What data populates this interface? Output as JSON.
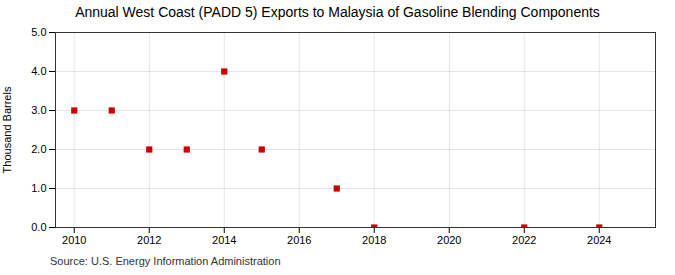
{
  "chart_data": {
    "type": "scatter",
    "title": "Annual West Coast (PADD 5) Exports to Malaysia of Gasoline Blending Components",
    "ylabel": "Thousand Barrels",
    "source": "Source: U.S. Energy Information Administration",
    "x": [
      2010,
      2011,
      2012,
      2013,
      2014,
      2015,
      2017,
      2018,
      2022,
      2024
    ],
    "values": [
      3.0,
      3.0,
      2.0,
      2.0,
      4.0,
      2.0,
      1.0,
      0.0,
      0.0,
      0.0
    ],
    "color": "#cc0000",
    "marker": "square",
    "xlim": [
      2009.5,
      2025.5
    ],
    "ylim": [
      0.0,
      5.0
    ],
    "xticks": [
      2010,
      2012,
      2014,
      2016,
      2018,
      2020,
      2022,
      2024
    ],
    "yticks": [
      {
        "value": 0,
        "label": "0.0"
      },
      {
        "value": 1,
        "label": "1.0"
      },
      {
        "value": 2,
        "label": "2.0"
      },
      {
        "value": 3,
        "label": "3.0"
      },
      {
        "value": 4,
        "label": "4.0"
      },
      {
        "value": 5,
        "label": "5.0"
      }
    ],
    "grid": true
  }
}
